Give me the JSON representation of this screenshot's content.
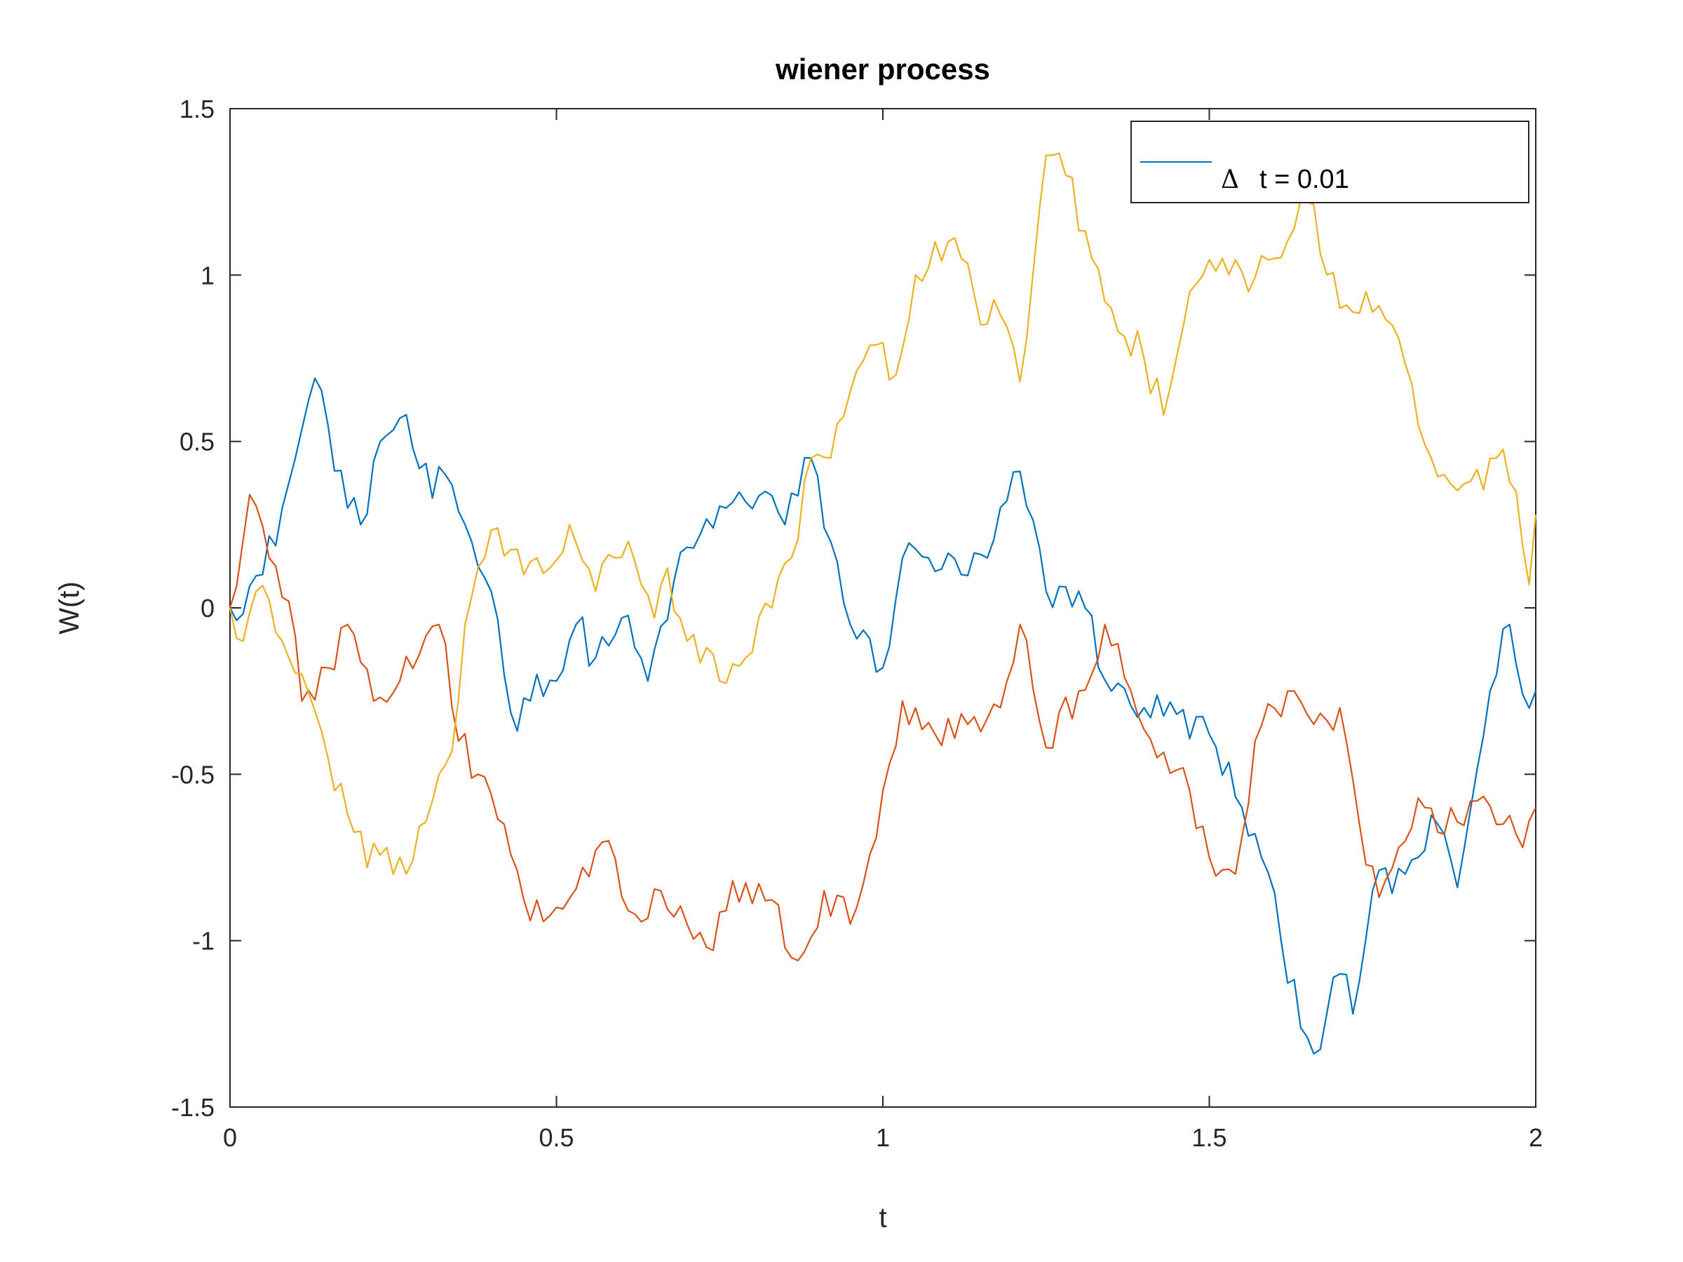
{
  "chart_data": {
    "type": "line",
    "title": "wiener process",
    "xlabel": "t",
    "ylabel": "W(t)",
    "xlim": [
      0,
      2
    ],
    "ylim": [
      -1.5,
      1.5
    ],
    "xticks": [
      "0",
      "0.5",
      "1",
      "1.5",
      "2"
    ],
    "yticks": [
      "-1.5",
      "-1",
      "-0.5",
      "0",
      "0.5",
      "1",
      "1.5"
    ],
    "grid": false,
    "legend": {
      "placement": "top-right",
      "entries": [
        {
          "symbol": "Δ",
          "label": "t = 0.01"
        }
      ]
    },
    "x_step": 0.01,
    "series": [
      {
        "color": "#0072bd",
        "anchors": [
          [
            0.0,
            0.0
          ],
          [
            0.05,
            0.1
          ],
          [
            0.08,
            0.3
          ],
          [
            0.1,
            0.45
          ],
          [
            0.13,
            0.69
          ],
          [
            0.15,
            0.55
          ],
          [
            0.18,
            0.3
          ],
          [
            0.2,
            0.25
          ],
          [
            0.23,
            0.5
          ],
          [
            0.26,
            0.57
          ],
          [
            0.28,
            0.48
          ],
          [
            0.31,
            0.33
          ],
          [
            0.33,
            0.4
          ],
          [
            0.36,
            0.25
          ],
          [
            0.4,
            0.05
          ],
          [
            0.44,
            -0.37
          ],
          [
            0.47,
            -0.2
          ],
          [
            0.5,
            -0.22
          ],
          [
            0.53,
            -0.05
          ],
          [
            0.56,
            -0.15
          ],
          [
            0.6,
            -0.03
          ],
          [
            0.64,
            -0.22
          ],
          [
            0.68,
            0.08
          ],
          [
            0.72,
            0.22
          ],
          [
            0.76,
            0.3
          ],
          [
            0.82,
            0.35
          ],
          [
            0.85,
            0.25
          ],
          [
            0.89,
            0.45
          ],
          [
            0.92,
            0.2
          ],
          [
            0.95,
            -0.05
          ],
          [
            1.0,
            -0.18
          ],
          [
            1.03,
            0.15
          ],
          [
            1.07,
            0.15
          ],
          [
            1.12,
            0.1
          ],
          [
            1.16,
            0.15
          ],
          [
            1.21,
            0.41
          ],
          [
            1.25,
            0.05
          ],
          [
            1.3,
            0.05
          ],
          [
            1.35,
            -0.25
          ],
          [
            1.4,
            -0.3
          ],
          [
            1.45,
            -0.32
          ],
          [
            1.5,
            -0.38
          ],
          [
            1.55,
            -0.6
          ],
          [
            1.58,
            -0.75
          ],
          [
            1.61,
            -1.0
          ],
          [
            1.66,
            -1.34
          ],
          [
            1.7,
            -1.1
          ],
          [
            1.72,
            -1.22
          ],
          [
            1.75,
            -0.85
          ],
          [
            1.8,
            -0.8
          ],
          [
            1.85,
            -0.65
          ],
          [
            1.88,
            -0.84
          ],
          [
            1.93,
            -0.25
          ],
          [
            1.96,
            -0.05
          ],
          [
            1.98,
            -0.26
          ],
          [
            2.0,
            -0.25
          ]
        ]
      },
      {
        "color": "#d95319",
        "anchors": [
          [
            0.0,
            0.0
          ],
          [
            0.03,
            0.34
          ],
          [
            0.06,
            0.15
          ],
          [
            0.09,
            0.02
          ],
          [
            0.11,
            -0.28
          ],
          [
            0.15,
            -0.18
          ],
          [
            0.18,
            -0.05
          ],
          [
            0.22,
            -0.28
          ],
          [
            0.26,
            -0.22
          ],
          [
            0.29,
            -0.14
          ],
          [
            0.32,
            -0.05
          ],
          [
            0.35,
            -0.4
          ],
          [
            0.38,
            -0.5
          ],
          [
            0.42,
            -0.65
          ],
          [
            0.46,
            -0.94
          ],
          [
            0.5,
            -0.9
          ],
          [
            0.54,
            -0.78
          ],
          [
            0.58,
            -0.7
          ],
          [
            0.62,
            -0.92
          ],
          [
            0.66,
            -0.85
          ],
          [
            0.7,
            -0.95
          ],
          [
            0.73,
            -1.02
          ],
          [
            0.77,
            -0.82
          ],
          [
            0.82,
            -0.88
          ],
          [
            0.87,
            -1.06
          ],
          [
            0.91,
            -0.85
          ],
          [
            0.95,
            -0.95
          ],
          [
            1.0,
            -0.55
          ],
          [
            1.03,
            -0.28
          ],
          [
            1.08,
            -0.38
          ],
          [
            1.13,
            -0.35
          ],
          [
            1.18,
            -0.3
          ],
          [
            1.21,
            -0.05
          ],
          [
            1.25,
            -0.42
          ],
          [
            1.3,
            -0.25
          ],
          [
            1.34,
            -0.05
          ],
          [
            1.38,
            -0.25
          ],
          [
            1.42,
            -0.45
          ],
          [
            1.47,
            -0.55
          ],
          [
            1.5,
            -0.75
          ],
          [
            1.54,
            -0.8
          ],
          [
            1.57,
            -0.4
          ],
          [
            1.62,
            -0.25
          ],
          [
            1.66,
            -0.35
          ],
          [
            1.7,
            -0.3
          ],
          [
            1.73,
            -0.65
          ],
          [
            1.76,
            -0.87
          ],
          [
            1.79,
            -0.72
          ],
          [
            1.83,
            -0.6
          ],
          [
            1.86,
            -0.68
          ],
          [
            1.9,
            -0.58
          ],
          [
            1.95,
            -0.65
          ],
          [
            1.98,
            -0.72
          ],
          [
            2.0,
            -0.6
          ]
        ]
      },
      {
        "color": "#edb120",
        "anchors": [
          [
            0.0,
            0.0
          ],
          [
            0.02,
            -0.1
          ],
          [
            0.04,
            0.05
          ],
          [
            0.08,
            -0.1
          ],
          [
            0.11,
            -0.2
          ],
          [
            0.15,
            -0.45
          ],
          [
            0.18,
            -0.62
          ],
          [
            0.21,
            -0.78
          ],
          [
            0.24,
            -0.72
          ],
          [
            0.27,
            -0.8
          ],
          [
            0.31,
            -0.58
          ],
          [
            0.34,
            -0.43
          ],
          [
            0.36,
            -0.05
          ],
          [
            0.39,
            0.15
          ],
          [
            0.41,
            0.24
          ],
          [
            0.45,
            0.1
          ],
          [
            0.49,
            0.12
          ],
          [
            0.52,
            0.25
          ],
          [
            0.56,
            0.05
          ],
          [
            0.59,
            0.15
          ],
          [
            0.61,
            0.2
          ],
          [
            0.65,
            -0.03
          ],
          [
            0.67,
            0.12
          ],
          [
            0.7,
            -0.1
          ],
          [
            0.73,
            -0.12
          ],
          [
            0.75,
            -0.22
          ],
          [
            0.79,
            -0.15
          ],
          [
            0.83,
            0.0
          ],
          [
            0.86,
            0.15
          ],
          [
            0.89,
            0.45
          ],
          [
            0.92,
            0.45
          ],
          [
            0.95,
            0.65
          ],
          [
            0.99,
            0.79
          ],
          [
            1.02,
            0.7
          ],
          [
            1.05,
            1.0
          ],
          [
            1.08,
            1.1
          ],
          [
            1.12,
            1.05
          ],
          [
            1.15,
            0.85
          ],
          [
            1.18,
            0.88
          ],
          [
            1.21,
            0.68
          ],
          [
            1.24,
            1.2
          ],
          [
            1.25,
            1.36
          ],
          [
            1.28,
            1.3
          ],
          [
            1.32,
            1.05
          ],
          [
            1.35,
            0.9
          ],
          [
            1.4,
            0.75
          ],
          [
            1.43,
            0.58
          ],
          [
            1.47,
            0.95
          ],
          [
            1.52,
            1.05
          ],
          [
            1.56,
            0.95
          ],
          [
            1.6,
            1.05
          ],
          [
            1.65,
            1.22
          ],
          [
            1.7,
            0.9
          ],
          [
            1.74,
            0.95
          ],
          [
            1.78,
            0.85
          ],
          [
            1.82,
            0.55
          ],
          [
            1.86,
            0.4
          ],
          [
            1.9,
            0.38
          ],
          [
            1.94,
            0.45
          ],
          [
            1.97,
            0.35
          ],
          [
            1.99,
            0.07
          ],
          [
            2.0,
            0.28
          ]
        ]
      }
    ]
  }
}
